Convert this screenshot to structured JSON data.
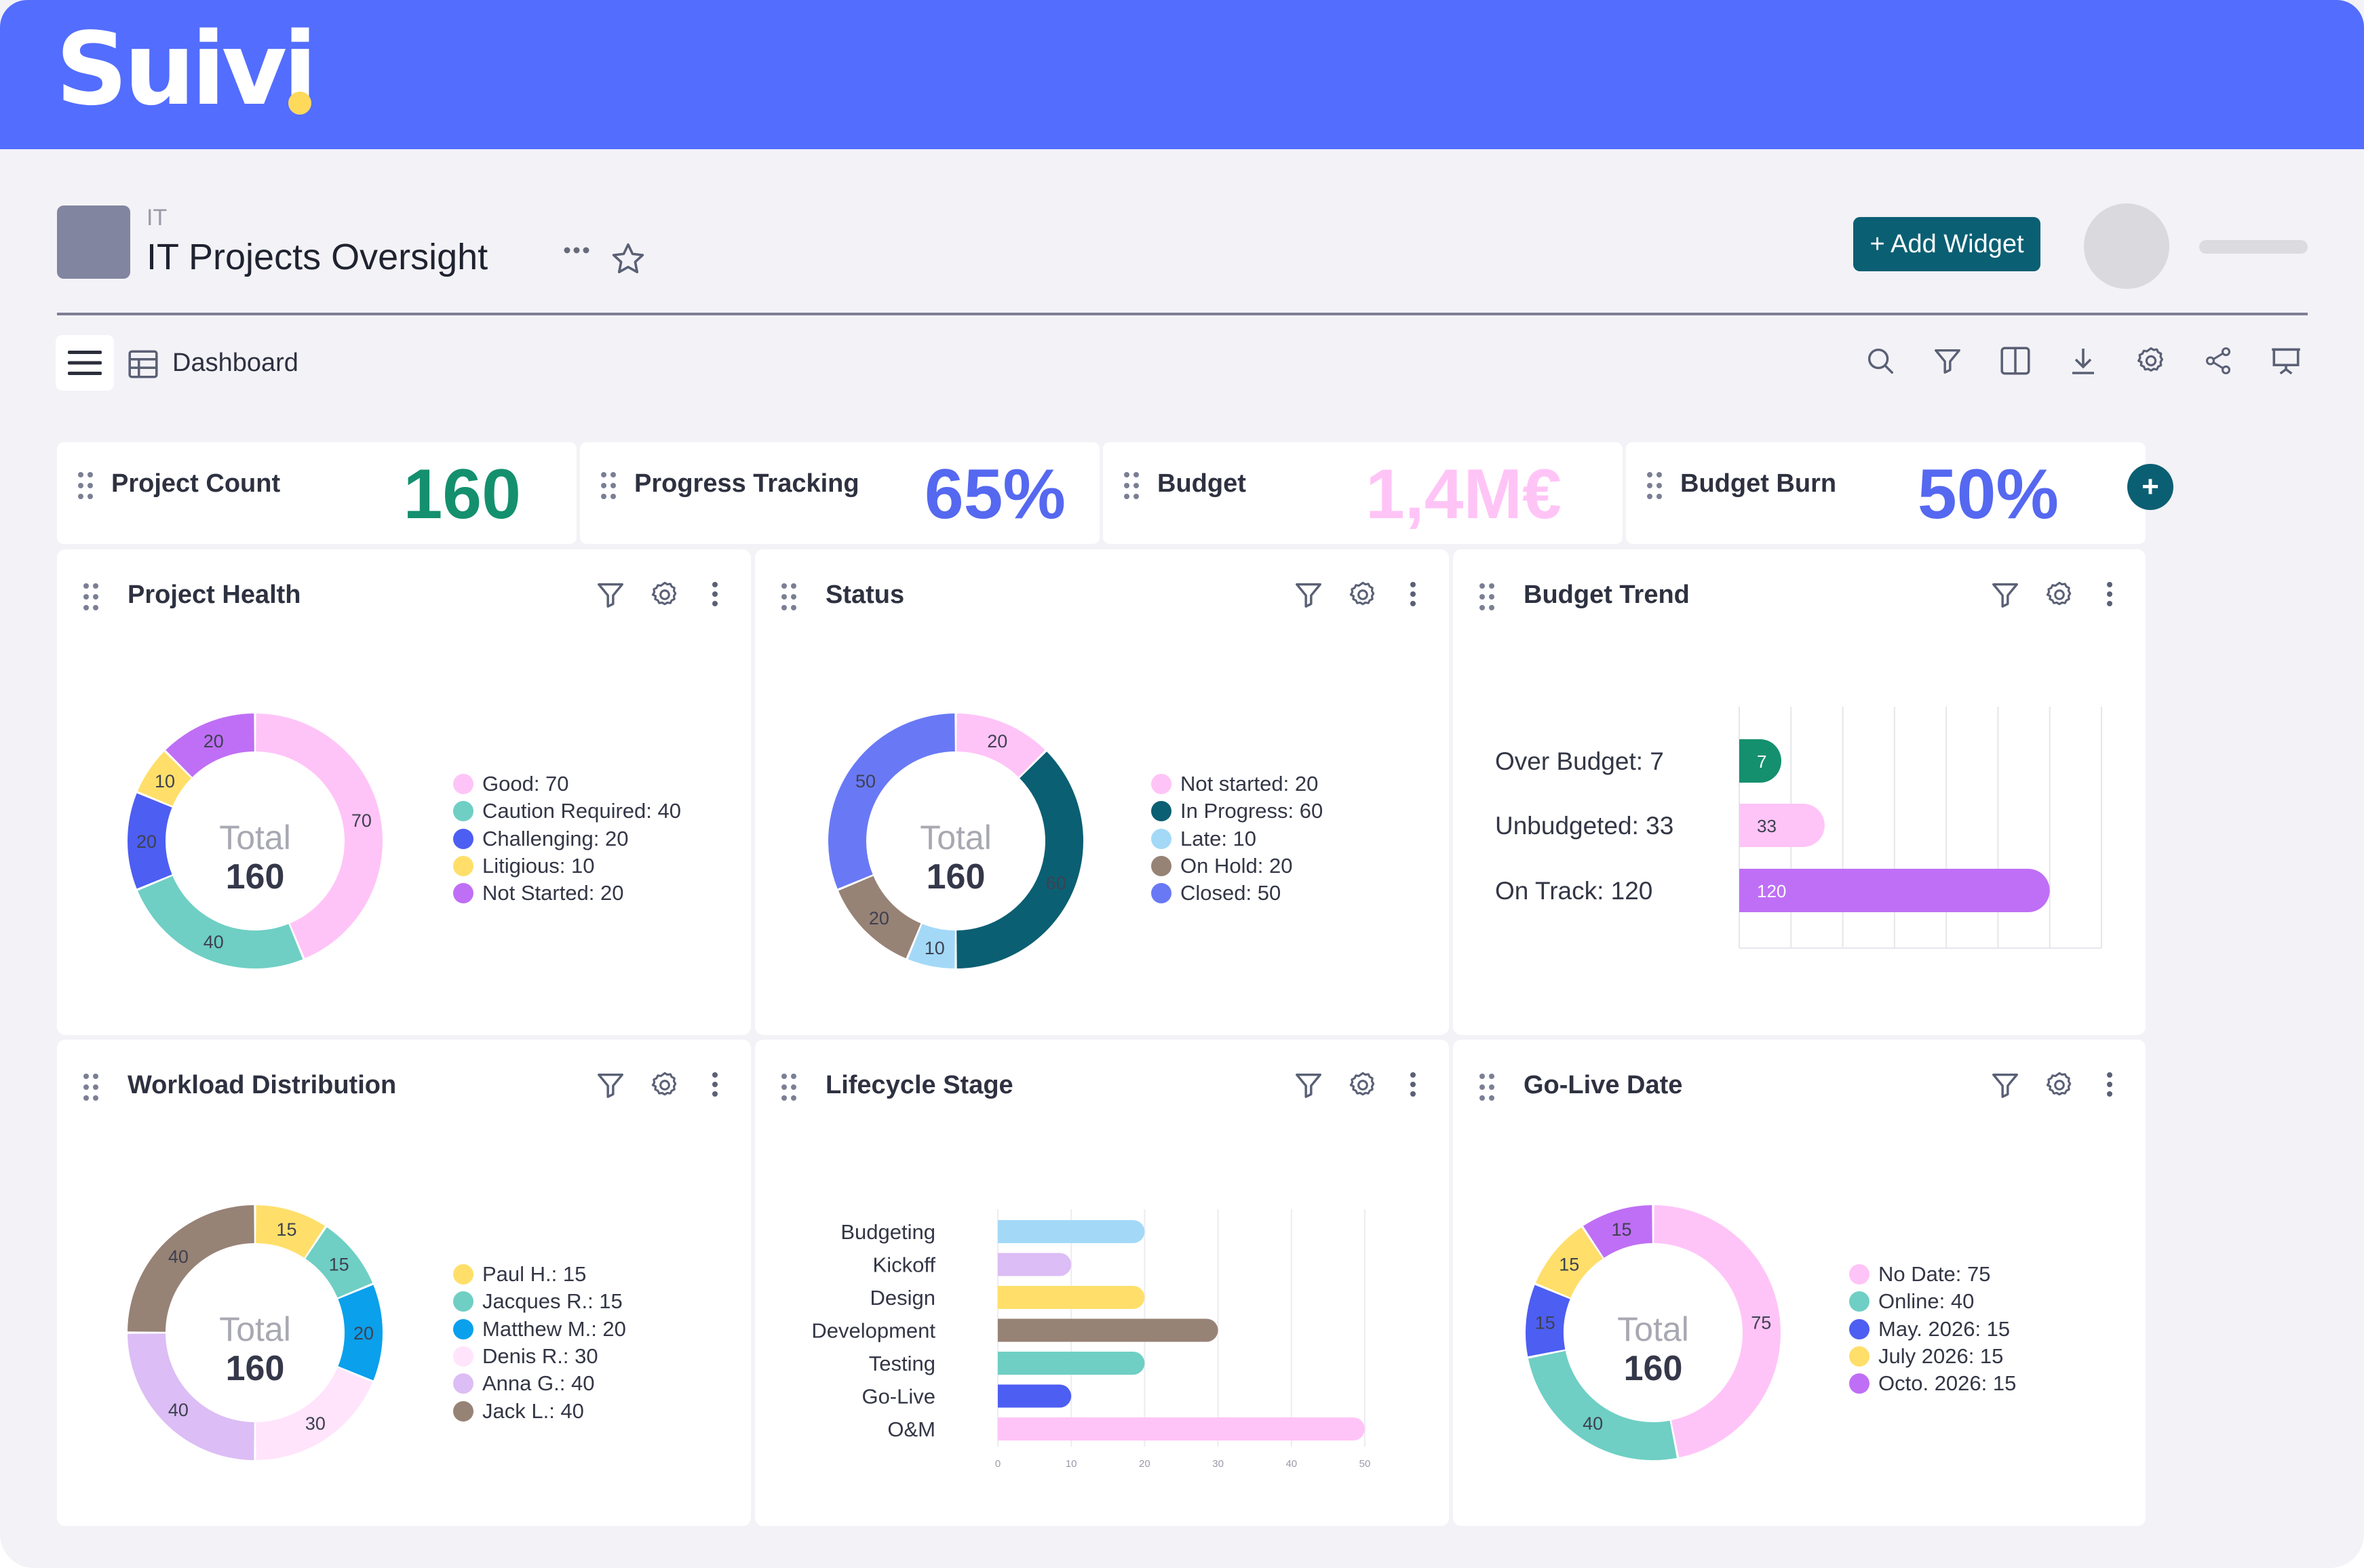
{
  "brand": {
    "name": "Suivi",
    "primary": "#536dfe",
    "accent_dot": "#ffd95a",
    "teal": "#0b5f73"
  },
  "header": {
    "project_code": "IT",
    "title": "IT Projects Oversight",
    "more_icon": "more-horizontal-icon",
    "favorite_icon": "star-outline-icon",
    "add_widget_label": "+ Add Widget"
  },
  "toolbar": {
    "view_label": "Dashboard",
    "tools": [
      "search-icon",
      "filter-icon",
      "columns-icon",
      "download-icon",
      "settings-icon",
      "share-icon",
      "presentation-icon"
    ]
  },
  "kpis": [
    {
      "label": "Project Count",
      "value": "160",
      "color": "#14906e"
    },
    {
      "label": "Progress Tracking",
      "value": "65%",
      "color": "#5568f0"
    },
    {
      "label": "Budget",
      "value": "1,4M€",
      "color": "#ffc4f6"
    },
    {
      "label": "Budget Burn",
      "value": "50%",
      "color": "#5568f0"
    }
  ],
  "kpi_add_label": "+",
  "widgets": {
    "project_health": {
      "title": "Project Health",
      "total_label": "Total",
      "total_value": "160",
      "legend": [
        "Good: 70",
        "Caution Required: 40",
        "Challenging: 20",
        "Litigious: 10",
        "Not Started: 20"
      ]
    },
    "status": {
      "title": "Status",
      "total_label": "Total",
      "total_value": "160",
      "legend": [
        "Not started: 20",
        "In Progress: 60",
        "Late: 10",
        "On Hold: 20",
        "Closed: 50"
      ]
    },
    "budget_trend": {
      "title": "Budget Trend",
      "labels": [
        "Over Budget: 7",
        "Unbudgeted: 33",
        "On Track: 120"
      ]
    },
    "workload": {
      "title": "Workload Distribution",
      "total_label": "Total",
      "total_value": "160",
      "legend": [
        "Paul H.: 15",
        "Jacques R.: 15",
        "Matthew M.: 20",
        "Denis R.: 30",
        "Anna G.: 40",
        "Jack L.: 40"
      ]
    },
    "lifecycle": {
      "title": "Lifecycle Stage"
    },
    "golive": {
      "title": "Go-Live Date",
      "total_label": "Total",
      "total_value": "160",
      "legend": [
        "No Date: 75",
        "Online: 40",
        "May. 2026: 15",
        "July 2026: 15",
        "Octo. 2026: 15"
      ]
    }
  },
  "chart_data": [
    {
      "type": "pie",
      "name": "Project Health",
      "slices": [
        {
          "label": "Good",
          "value": 70,
          "color": "#ffc4f7"
        },
        {
          "label": "Caution Required",
          "value": 40,
          "color": "#6fcfc4"
        },
        {
          "label": "Challenging",
          "value": 20,
          "color": "#4d5ef2"
        },
        {
          "label": "Litigious",
          "value": 10,
          "color": "#ffdf6a"
        },
        {
          "label": "Not Started",
          "value": 20,
          "color": "#bf6ff5"
        }
      ]
    },
    {
      "type": "pie",
      "name": "Status",
      "slices": [
        {
          "label": "Not started",
          "value": 20,
          "color": "#ffc4f7"
        },
        {
          "label": "In Progress",
          "value": 60,
          "color": "#0b5f73"
        },
        {
          "label": "Late",
          "value": 10,
          "color": "#a3d9f7"
        },
        {
          "label": "On Hold",
          "value": 20,
          "color": "#978276"
        },
        {
          "label": "Closed",
          "value": 50,
          "color": "#6979f5"
        }
      ]
    },
    {
      "type": "bar",
      "name": "Budget Trend",
      "orientation": "horizontal",
      "categories": [
        "Over Budget",
        "Unbudgeted",
        "On Track"
      ],
      "values": [
        7,
        33,
        120
      ],
      "colors": [
        "#14906e",
        "#ffc4f7",
        "#bf6ff5"
      ],
      "grid": true
    },
    {
      "type": "pie",
      "name": "Workload Distribution",
      "slices": [
        {
          "label": "Paul H.",
          "value": 15,
          "color": "#ffdf6a"
        },
        {
          "label": "Jacques R.",
          "value": 15,
          "color": "#6fcfc4"
        },
        {
          "label": "Matthew M.",
          "value": 20,
          "color": "#0aa0ec"
        },
        {
          "label": "Denis R.",
          "value": 30,
          "color": "#ffe4fb"
        },
        {
          "label": "Anna G.",
          "value": 40,
          "color": "#dcbdf5"
        },
        {
          "label": "Jack L.",
          "value": 40,
          "color": "#978276"
        }
      ]
    },
    {
      "type": "bar",
      "name": "Lifecycle Stage",
      "orientation": "horizontal",
      "categories": [
        "Budgeting",
        "Kickoff",
        "Design",
        "Development",
        "Testing",
        "Go-Live",
        "O&M"
      ],
      "values": [
        20,
        10,
        20,
        30,
        20,
        10,
        50
      ],
      "colors": [
        "#a3d9f7",
        "#dcbdf5",
        "#ffdf6a",
        "#978276",
        "#6fcfc4",
        "#4d5ef2",
        "#ffc4f7"
      ],
      "xticks": [
        0,
        10,
        20,
        30,
        40,
        50
      ],
      "xlim": [
        0,
        50
      ],
      "grid": true
    },
    {
      "type": "pie",
      "name": "Go-Live Date",
      "slices": [
        {
          "label": "No Date",
          "value": 75,
          "color": "#ffc4f7"
        },
        {
          "label": "Online",
          "value": 40,
          "color": "#6fcfc4"
        },
        {
          "label": "May. 2026",
          "value": 15,
          "color": "#4d5ef2"
        },
        {
          "label": "July 2026",
          "value": 15,
          "color": "#ffdf6a"
        },
        {
          "label": "Octo. 2026",
          "value": 15,
          "color": "#bf6ff5"
        }
      ]
    }
  ]
}
